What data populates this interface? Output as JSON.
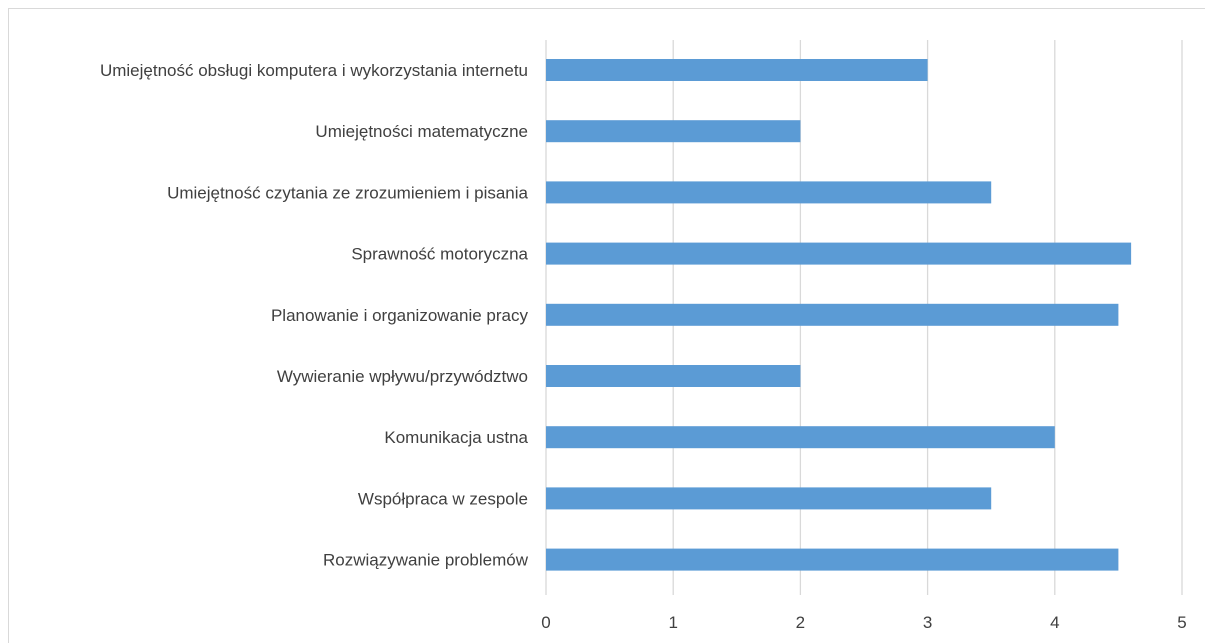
{
  "chart_data": {
    "type": "bar",
    "orientation": "horizontal",
    "title": "",
    "xlabel": "",
    "ylabel": "",
    "categories": [
      "Umiejętność obsługi komputera i wykorzystania internetu",
      "Umiejętności matematyczne",
      "Umiejętność czytania ze zrozumieniem i pisania",
      "Sprawność motoryczna",
      "Planowanie i organizowanie pracy",
      "Wywieranie wpływu/przywództwo",
      "Komunikacja ustna",
      "Współpraca w zespole",
      "Rozwiązywanie problemów"
    ],
    "values": [
      3,
      2,
      3.5,
      4.6,
      4.5,
      2,
      4,
      3.5,
      4.5
    ],
    "xlim": [
      0,
      5
    ],
    "xticks": [
      "0",
      "1",
      "2",
      "3",
      "4",
      "5"
    ],
    "grid": "vertical",
    "legend": "none",
    "bar_color": "#5b9bd5",
    "grid_color": "#d9d9d9",
    "text_color": "#404040"
  }
}
